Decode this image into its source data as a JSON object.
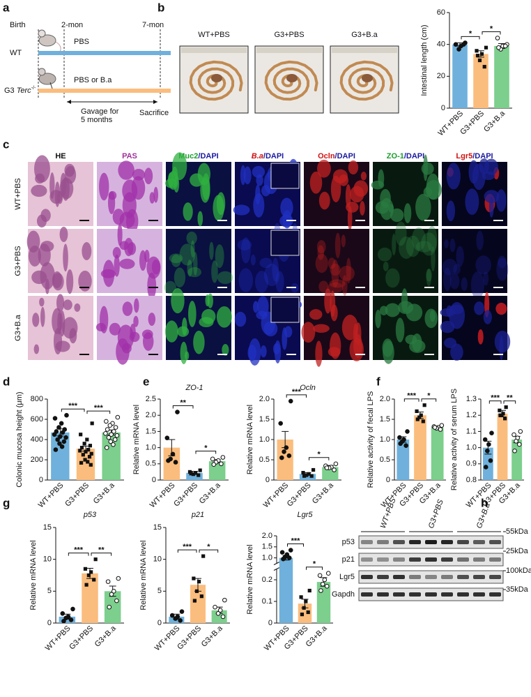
{
  "panel_labels": [
    "a",
    "b",
    "c",
    "d",
    "e",
    "f",
    "g",
    "h"
  ],
  "schematic": {
    "birth": "Birth",
    "start": "2-mon",
    "end": "7-mon",
    "wt": "WT",
    "wt_treatment": "PBS",
    "g3": "G3",
    "gene": "Terc",
    "genotype": "-/-",
    "g3_treatment": "PBS or B.a",
    "gavage_line1": "Gavage for",
    "gavage_line2": "5 months",
    "sacrifice": "Sacrifice"
  },
  "photos": {
    "labels": [
      "WT+PBS",
      "G3+PBS",
      "G3+B.a"
    ]
  },
  "histology": {
    "stains": [
      {
        "name": "HE"
      },
      {
        "name": "PAS"
      },
      {
        "name": "Muc2",
        "counterstain": "/DAPI"
      },
      {
        "name": "B.a",
        "counterstain": "/DAPI"
      },
      {
        "name": "Ocln",
        "counterstain": "/DAPI"
      },
      {
        "name": "ZO-1",
        "counterstain": "/DAPI"
      },
      {
        "name": "Lgr5",
        "counterstain": "/DAPI"
      }
    ],
    "rows": [
      "WT+PBS",
      "G3+PBS",
      "G3+B.a"
    ]
  },
  "western_blot": {
    "groups": [
      "WT+PBS",
      "G3+PBS",
      "G3+B.a"
    ],
    "proteins": [
      "p53",
      "p21",
      "Lgr5",
      "Gapdh"
    ],
    "markers": [
      "55kDa",
      "25kDa",
      "100kDa",
      "35kDa"
    ]
  },
  "chart_data": [
    {
      "type": "bar",
      "ylabel": "Intestinal length (cm)",
      "categories": [
        "WT+PBS",
        "G3+PBS",
        "G3+B.a"
      ],
      "values": [
        40,
        34,
        39
      ],
      "errors": [
        1,
        2,
        1.5
      ],
      "points": [
        [
          41,
          40,
          39,
          37,
          40
        ],
        [
          38,
          36,
          34,
          30,
          26,
          33
        ],
        [
          40,
          44,
          39,
          37,
          39,
          38
        ]
      ],
      "colors": [
        "#6fb1dc",
        "#fbbd7d",
        "#7ccf8c"
      ],
      "markers": [
        "circle",
        "square",
        "open-circle"
      ],
      "ylim": [
        0,
        60
      ],
      "yticks": [
        0,
        20,
        40,
        60
      ],
      "significance": [
        {
          "pair": [
            0,
            1
          ],
          "label": "*"
        },
        {
          "pair": [
            1,
            2
          ],
          "label": "*"
        }
      ]
    },
    {
      "type": "bar",
      "ylabel": "Colonic mucosa height (μm)",
      "categories": [
        "WT+PBS",
        "G3+PBS",
        "G3+B.a"
      ],
      "values": [
        470,
        310,
        470
      ],
      "errors": [
        35,
        25,
        25
      ],
      "points": [
        [
          640,
          610,
          560,
          520,
          500,
          480,
          470,
          450,
          430,
          420,
          400,
          380,
          360,
          330,
          300
        ],
        [
          560,
          450,
          400,
          360,
          340,
          320,
          300,
          290,
          280,
          260,
          250,
          230,
          200,
          180,
          170,
          150
        ],
        [
          620,
          580,
          560,
          540,
          520,
          500,
          480,
          460,
          450,
          440,
          420,
          400,
          380,
          350,
          320
        ]
      ],
      "colors": [
        "#6fb1dc",
        "#fbbd7d",
        "#7ccf8c"
      ],
      "markers": [
        "circle",
        "square",
        "open-circle"
      ],
      "ylim": [
        0,
        800
      ],
      "yticks": [
        0,
        200,
        400,
        600,
        800
      ],
      "significance": [
        {
          "pair": [
            0,
            1
          ],
          "label": "***"
        },
        {
          "pair": [
            1,
            2
          ],
          "label": "***"
        }
      ]
    },
    {
      "type": "bar",
      "title": "ZO-1",
      "ylabel": "Relative mRNA level",
      "categories": [
        "WT+PBS",
        "G3+PBS",
        "G3+B.a"
      ],
      "values": [
        1.0,
        0.22,
        0.58
      ],
      "errors": [
        0.25,
        0.05,
        0.05
      ],
      "points": [
        [
          2.1,
          1.3,
          0.8,
          0.65,
          0.55,
          0.6
        ],
        [
          0.3,
          0.25,
          0.22,
          0.18,
          0.15,
          0.2
        ],
        [
          0.7,
          0.65,
          0.6,
          0.55,
          0.5,
          0.48
        ]
      ],
      "colors": [
        "#fbbd7d",
        "#6fb1dc",
        "#7ccf8c"
      ],
      "markers": [
        "circle",
        "square",
        "open-circle"
      ],
      "ylim": [
        0,
        2.5
      ],
      "yticks": [
        0,
        0.5,
        {
          "value": 1,
          "label": "1.0"
        },
        1.5,
        {
          "value": 2,
          "label": "2.0"
        },
        2.5
      ],
      "significance": [
        {
          "pair": [
            0,
            1
          ],
          "label": "**"
        },
        {
          "pair": [
            1,
            2
          ],
          "label": "*"
        }
      ]
    },
    {
      "type": "bar",
      "title": "Ocln",
      "ylabel": "Relative mRNA level",
      "categories": [
        "WT+PBS",
        "G3+PBS",
        "G3+B.a"
      ],
      "values": [
        1.0,
        0.15,
        0.32
      ],
      "errors": [
        0.2,
        0.03,
        0.04
      ],
      "points": [
        [
          1.95,
          1.4,
          0.8,
          0.7,
          0.6,
          0.55
        ],
        [
          0.25,
          0.18,
          0.15,
          0.12,
          0.1,
          0.1
        ],
        [
          0.4,
          0.35,
          0.32,
          0.3,
          0.25,
          0.3
        ]
      ],
      "colors": [
        "#fbbd7d",
        "#6fb1dc",
        "#7ccf8c"
      ],
      "markers": [
        "circle",
        "square",
        "open-circle"
      ],
      "ylim": [
        0,
        2.0
      ],
      "yticks": [
        0,
        0.5,
        {
          "value": 1,
          "label": "1.0"
        },
        1.5,
        {
          "value": 2,
          "label": "2.0"
        }
      ],
      "significance": [
        {
          "pair": [
            0,
            1
          ],
          "label": "***"
        },
        {
          "pair": [
            1,
            2
          ],
          "label": "*"
        }
      ]
    },
    {
      "type": "bar",
      "ylabel": "Relative activity of fecal LPS",
      "categories": [
        "WT+PBS",
        "G3+PBS",
        "G3+B.a"
      ],
      "values": [
        1.0,
        1.6,
        1.3
      ],
      "errors": [
        0.07,
        0.08,
        0.03
      ],
      "points": [
        [
          1.2,
          1.05,
          1.0,
          0.95,
          0.85,
          0.9
        ],
        [
          1.85,
          1.7,
          1.6,
          1.55,
          1.45,
          1.5
        ],
        [
          1.35,
          1.32,
          1.3,
          1.28,
          1.25,
          1.3
        ]
      ],
      "colors": [
        "#6fb1dc",
        "#fbbd7d",
        "#7ccf8c"
      ],
      "markers": [
        "circle",
        "square",
        "open-circle"
      ],
      "ylim": [
        0,
        2.0
      ],
      "yticks": [
        0,
        0.5,
        {
          "value": 1,
          "label": "1.0"
        },
        1.5,
        {
          "value": 2,
          "label": "2.0"
        }
      ],
      "significance": [
        {
          "pair": [
            0,
            1
          ],
          "label": "***"
        },
        {
          "pair": [
            1,
            2
          ],
          "label": "*"
        }
      ]
    },
    {
      "type": "bar",
      "ylabel": "Relative activity of serum LPS",
      "categories": [
        "WT+PBS",
        "G3+PBS",
        "G3+B.a"
      ],
      "values": [
        1.0,
        1.21,
        1.05
      ],
      "errors": [
        0.04,
        0.02,
        0.02
      ],
      "points": [
        [
          1.09,
          1.05,
          1.02,
          0.98,
          0.92,
          0.88
        ],
        [
          1.25,
          1.23,
          1.21,
          1.2,
          1.18,
          1.2
        ],
        [
          1.1,
          1.08,
          1.06,
          1.04,
          1.02,
          0.98
        ]
      ],
      "colors": [
        "#6fb1dc",
        "#fbbd7d",
        "#7ccf8c"
      ],
      "markers": [
        "circle",
        "square",
        "open-circle"
      ],
      "ylim": [
        0.8,
        1.3
      ],
      "yticks": [
        0.8,
        0.9,
        {
          "value": 1,
          "label": "1.0"
        },
        1.1,
        1.2,
        1.3
      ],
      "significance": [
        {
          "pair": [
            0,
            1
          ],
          "label": "***"
        },
        {
          "pair": [
            1,
            2
          ],
          "label": "**"
        }
      ]
    },
    {
      "type": "bar",
      "title": "p53",
      "ylabel": "Relative mRNA level",
      "categories": [
        "WT+PBS",
        "G3+PBS",
        "G3+B.a"
      ],
      "values": [
        1,
        7.8,
        5
      ],
      "errors": [
        0.4,
        0.8,
        0.8
      ],
      "points": [
        [
          2.2,
          1.5,
          1.0,
          0.8,
          0.5,
          0.3
        ],
        [
          10,
          8.5,
          8,
          7.5,
          6.8,
          6
        ],
        [
          7,
          6.5,
          5,
          4.5,
          3.5,
          2.5
        ]
      ],
      "colors": [
        "#6fb1dc",
        "#fbbd7d",
        "#7ccf8c"
      ],
      "markers": [
        "circle",
        "square",
        "open-circle"
      ],
      "ylim": [
        0,
        15
      ],
      "yticks": [
        0,
        5,
        10,
        15
      ],
      "significance": [
        {
          "pair": [
            0,
            1
          ],
          "label": "***"
        },
        {
          "pair": [
            1,
            2
          ],
          "label": "**"
        }
      ]
    },
    {
      "type": "bar",
      "title": "p21",
      "ylabel": "Relative mRNA level",
      "categories": [
        "WT+PBS",
        "G3+PBS",
        "G3+B.a"
      ],
      "values": [
        1,
        6,
        2
      ],
      "errors": [
        0.4,
        1,
        0.5
      ],
      "points": [
        [
          1.8,
          1.2,
          1.0,
          0.7,
          0.4
        ],
        [
          10.5,
          7,
          6.5,
          5,
          4.2,
          3.5
        ],
        [
          3.6,
          2.5,
          2,
          1.5,
          1.0
        ]
      ],
      "colors": [
        "#6fb1dc",
        "#fbbd7d",
        "#7ccf8c"
      ],
      "markers": [
        "circle",
        "square",
        "open-circle"
      ],
      "ylim": [
        0,
        15
      ],
      "yticks": [
        0,
        5,
        10,
        15
      ],
      "significance": [
        {
          "pair": [
            0,
            1
          ],
          "label": "***"
        },
        {
          "pair": [
            1,
            2
          ],
          "label": "*"
        }
      ]
    },
    {
      "type": "bar",
      "title": "Lgr5",
      "ylabel": "Relative mRNA level",
      "categories": [
        "WT+PBS",
        "G3+PBS",
        "G3+B.a"
      ],
      "values": [
        1.0,
        0.09,
        0.19
      ],
      "errors": [
        0.1,
        0.02,
        0.02
      ],
      "points": [
        [
          1.35,
          1.25,
          1.15,
          1.05,
          1.0,
          0.95
        ],
        [
          0.15,
          0.12,
          0.1,
          0.07,
          0.05,
          0.04
        ],
        [
          0.23,
          0.22,
          0.2,
          0.18,
          0.17,
          0.15
        ]
      ],
      "colors": [
        "#6fb1dc",
        "#fbbd7d",
        "#7ccf8c"
      ],
      "markers": [
        "circle",
        "square",
        "open-circle"
      ],
      "ylim": [
        0,
        2.0
      ],
      "ybreak": [
        0.25,
        0.75
      ],
      "yticks": [
        0,
        0.1,
        0.2,
        {
          "value": 1,
          "label": "1.0"
        },
        1.5,
        {
          "value": 2,
          "label": "2.0"
        }
      ],
      "significance": [
        {
          "pair": [
            0,
            1
          ],
          "label": "***"
        },
        {
          "pair": [
            1,
            2
          ],
          "label": "*"
        }
      ]
    }
  ]
}
